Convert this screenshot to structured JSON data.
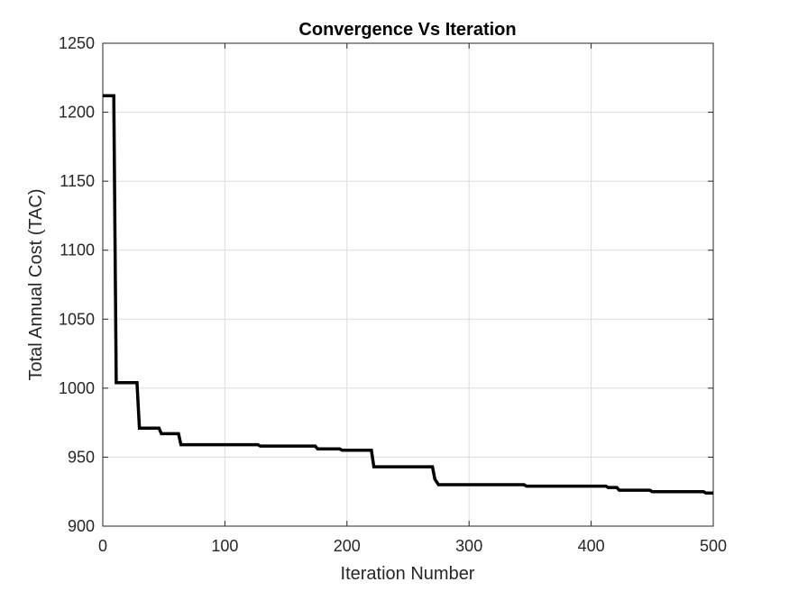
{
  "chart_data": {
    "type": "line",
    "title": "Convergence Vs Iteration",
    "xlabel": "Iteration Number",
    "ylabel": "Total Annual Cost (TAC)",
    "xlim": [
      0,
      500
    ],
    "ylim": [
      900,
      1250
    ],
    "xticks": [
      0,
      100,
      200,
      300,
      400,
      500
    ],
    "yticks": [
      900,
      950,
      1000,
      1050,
      1100,
      1150,
      1200,
      1250
    ],
    "grid": true,
    "series": [
      {
        "color": "#000000",
        "step": true,
        "x": [
          0,
          9,
          11,
          28,
          30,
          46,
          48,
          62,
          64,
          127,
          129,
          174,
          176,
          194,
          196,
          220,
          222,
          270,
          272,
          275,
          345,
          347,
          412,
          414,
          421,
          423,
          448,
          450,
          492,
          494,
          500
        ],
        "y": [
          1212,
          1212,
          1004,
          1004,
          971,
          971,
          967,
          967,
          959,
          959,
          958,
          958,
          956,
          956,
          955,
          955,
          943,
          943,
          934,
          930,
          930,
          929,
          929,
          928,
          928,
          926,
          926,
          925,
          925,
          924,
          924
        ]
      }
    ]
  }
}
